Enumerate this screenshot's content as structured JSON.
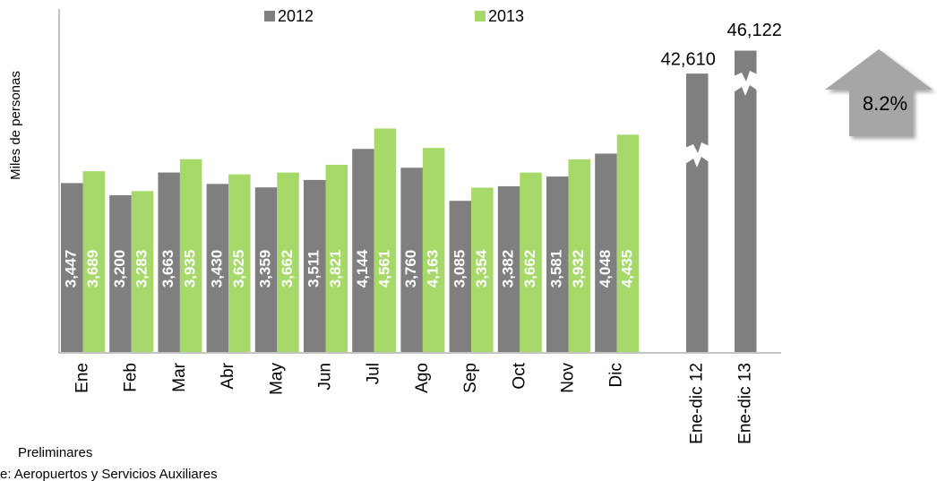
{
  "chart_data": {
    "type": "bar",
    "y_label": "Miles de personas",
    "categories": [
      "Ene",
      "Feb",
      "Mar",
      "Abr",
      "May",
      "Jun",
      "Jul",
      "Ago",
      "Sep",
      "Oct",
      "Nov",
      "Dic"
    ],
    "series": [
      {
        "name": "2012",
        "color": "#7f7f7f",
        "values": [
          3447,
          3200,
          3663,
          3430,
          3359,
          3511,
          4144,
          3760,
          3085,
          3382,
          3581,
          4048
        ],
        "value_labels": [
          "3,447",
          "3,200",
          "3,663",
          "3,430",
          "3,359",
          "3,511",
          "4,144",
          "3,760",
          "3,085",
          "3,382",
          "3,581",
          "4,048"
        ]
      },
      {
        "name": "2013",
        "color": "#a6d96a",
        "values": [
          3689,
          3283,
          3935,
          3625,
          3662,
          3821,
          4561,
          4163,
          3354,
          3662,
          3932,
          4435
        ],
        "value_labels": [
          "3,689",
          "3,283",
          "3,935",
          "3,625",
          "3,662",
          "3,821",
          "4,561",
          "4,163",
          "3,354",
          "3,662",
          "3,932",
          "4,435"
        ]
      }
    ],
    "ylim": [
      0,
      7000
    ],
    "totals": {
      "categories": [
        "Ene-dic 12",
        "Ene-dic 13"
      ],
      "values": [
        42610,
        46122
      ],
      "value_labels": [
        "42,610",
        "46,122"
      ],
      "color": "#7f7f7f",
      "axis": "y2"
    },
    "y2lim": [
      0,
      52500
    ],
    "annotation": "8.2%",
    "notes": [
      "Preliminares",
      "e: Aeropuertos y Servicios Auxiliares"
    ]
  }
}
